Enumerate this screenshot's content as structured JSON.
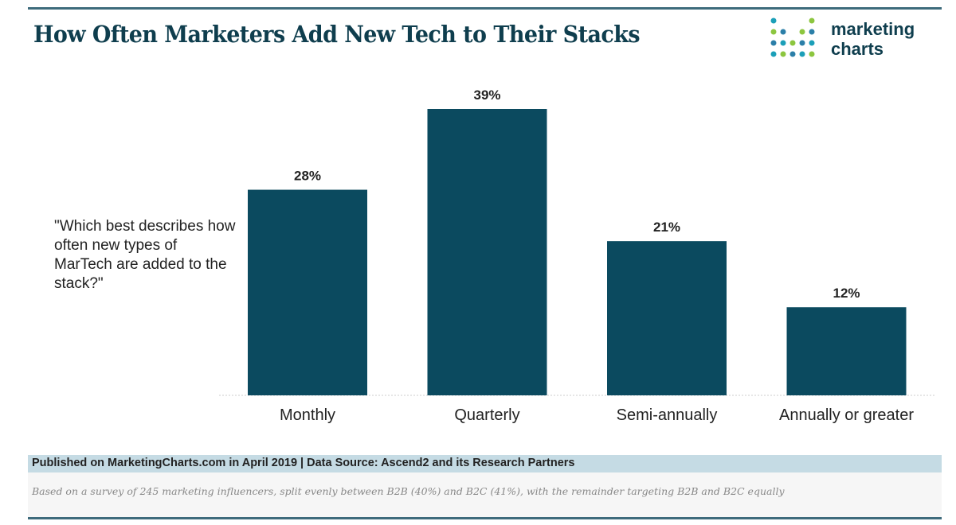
{
  "header": {
    "title": "How Often Marketers Add New Tech to Their Stacks"
  },
  "logo": {
    "line1": "marketing",
    "line2": "charts",
    "colors": [
      "#1b9fb8",
      "#8cc63f",
      "#2b7fa8"
    ]
  },
  "chart_data": {
    "type": "bar",
    "title": "How Often Marketers Add New Tech to Their Stacks",
    "annotation": "\"Which best describes how often new types of MarTech are added to the stack?\"",
    "categories": [
      "Monthly",
      "Quarterly",
      "Semi-annually",
      "Annually or greater"
    ],
    "values": [
      28,
      39,
      21,
      12
    ],
    "value_labels": [
      "28%",
      "39%",
      "21%",
      "12%"
    ],
    "ylim": [
      0,
      39
    ],
    "grid": false,
    "bar_color": "#0b4a5f"
  },
  "footer": {
    "published": "Published on MarketingCharts.com in April 2019 | Data Source: Ascend2 and its Research Partners",
    "note": "Based on a survey of 245 marketing influencers, split evenly between B2B (40%) and B2C (41%), with the remainder targeting B2B and B2C equally"
  }
}
